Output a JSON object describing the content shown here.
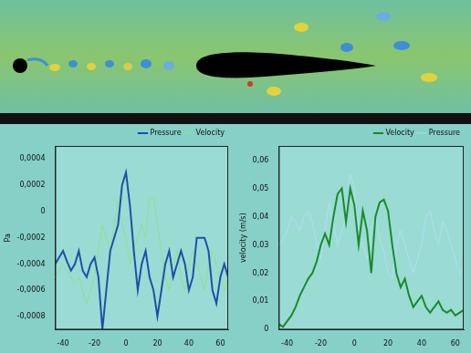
{
  "chart_data": [
    {
      "type": "line",
      "y_label": "Pa",
      "x": [
        -45,
        -42.5,
        -40,
        -37.5,
        -35,
        -32.5,
        -30,
        -27.5,
        -25,
        -22.5,
        -20,
        -17.5,
        -15,
        -12.5,
        -10,
        -7.5,
        -5,
        -2.5,
        0,
        2.5,
        5,
        7.5,
        10,
        12.5,
        15,
        17.5,
        20,
        22.5,
        25,
        27.5,
        30,
        32.5,
        35,
        37.5,
        40,
        42.5,
        45,
        47.5,
        50,
        52.5,
        55,
        57.5,
        60,
        62.5,
        65
      ],
      "series": [
        {
          "name": "Velocity",
          "color": "#8fe08a",
          "values": [
            -0.0005,
            -0.00045,
            -0.0004,
            -0.00045,
            -0.0005,
            -0.00055,
            -0.0005,
            -0.0006,
            -0.0007,
            -0.0006,
            -0.0005,
            -0.0003,
            -0.0001,
            -0.0002,
            -0.0003,
            -0.0001,
            0.0001,
            -0.0001,
            -0.0002,
            -0.0004,
            -0.0003,
            -0.0002,
            -0.0001,
            -0.0002,
            0.0001,
            0.0001,
            -0.0001,
            -0.0003,
            -0.0005,
            -0.0006,
            -0.0004,
            -0.0003,
            -0.0005,
            -0.0006,
            -0.0004,
            -0.0003,
            -0.0004,
            -0.0005,
            -0.0006,
            -0.0004,
            -0.0003,
            -0.0004,
            -0.0005,
            -0.0006,
            -0.0005
          ]
        },
        {
          "name": "Pressure",
          "color": "#1f4fa8",
          "values": [
            -0.0004,
            -0.00035,
            -0.0003,
            -0.00038,
            -0.00045,
            -0.0004,
            -0.0003,
            -0.00045,
            -0.0005,
            -0.0004,
            -0.00035,
            -0.0005,
            -0.0009,
            -0.0006,
            -0.0003,
            -0.0002,
            -0.0001,
            0.0002,
            0.0003,
            5e-05,
            -0.0003,
            -0.0006,
            -0.0004,
            -0.0003,
            -0.0005,
            -0.0006,
            -0.0008,
            -0.0006,
            -0.0004,
            -0.0003,
            -0.0005,
            -0.0004,
            -0.0003,
            -0.0004,
            -0.0006,
            -0.0005,
            -0.0002,
            -0.0002,
            -0.0002,
            -0.0003,
            -0.0006,
            -0.0007,
            -0.0005,
            -0.0004,
            -0.0005
          ]
        }
      ],
      "xlim": [
        -45,
        65
      ],
      "xticks": [
        -40,
        -20,
        0,
        20,
        40,
        60
      ],
      "ylim": [
        -0.0009,
        0.0005
      ],
      "yticks": [
        {
          "value": -0.0008,
          "label": "-0,0008"
        },
        {
          "value": -0.0006,
          "label": "-0,0006"
        },
        {
          "value": -0.0004,
          "label": "-0,0004"
        },
        {
          "value": -0.0002,
          "label": "-0,0002"
        },
        0,
        {
          "value": 0.0002,
          "label": "0,0002"
        },
        {
          "value": 0.0004,
          "label": "0,0004"
        }
      ],
      "grid": false,
      "legend": "upper right"
    },
    {
      "type": "line",
      "y_label": "velocity (m/s)",
      "x": [
        -45,
        -42.5,
        -40,
        -37.5,
        -35,
        -32.5,
        -30,
        -27.5,
        -25,
        -22.5,
        -20,
        -17.5,
        -15,
        -12.5,
        -10,
        -7.5,
        -5,
        -2.5,
        0,
        2.5,
        5,
        7.5,
        10,
        12.5,
        15,
        17.5,
        20,
        22.5,
        25,
        27.5,
        30,
        32.5,
        35,
        37.5,
        40,
        42.5,
        45,
        47.5,
        50,
        52.5,
        55,
        57.5,
        60,
        62.5,
        65
      ],
      "series": [
        {
          "name": "Velocity",
          "color": "#1a8a2a",
          "values": [
            0.002,
            0.001,
            0.003,
            0.005,
            0.008,
            0.012,
            0.015,
            0.018,
            0.02,
            0.024,
            0.03,
            0.034,
            0.03,
            0.04,
            0.048,
            0.05,
            0.038,
            0.05,
            0.044,
            0.03,
            0.042,
            0.035,
            0.02,
            0.04,
            0.045,
            0.046,
            0.042,
            0.03,
            0.02,
            0.015,
            0.018,
            0.012,
            0.008,
            0.01,
            0.012,
            0.008,
            0.006,
            0.008,
            0.01,
            0.007,
            0.006,
            0.007,
            0.005,
            0.006,
            0.007
          ]
        },
        {
          "name": "Pressure",
          "color": "#b4dcf0",
          "values": [
            0.03,
            0.032,
            0.035,
            0.04,
            0.038,
            0.035,
            0.04,
            0.042,
            0.038,
            0.03,
            0.025,
            0.035,
            0.045,
            0.038,
            0.03,
            0.035,
            0.04,
            0.055,
            0.05,
            0.035,
            0.03,
            0.025,
            0.035,
            0.04,
            0.032,
            0.028,
            0.02,
            0.018,
            0.03,
            0.035,
            0.03,
            0.025,
            0.02,
            0.025,
            0.03,
            0.04,
            0.042,
            0.035,
            0.03,
            0.038,
            0.035,
            0.03,
            0.025,
            0.02,
            0.022
          ]
        }
      ],
      "xlim": [
        -45,
        65
      ],
      "xticks": [
        -40,
        -20,
        0,
        20,
        40,
        60
      ],
      "ylim": [
        0,
        0.065
      ],
      "yticks": [
        0,
        {
          "value": 0.01,
          "label": "0,01"
        },
        {
          "value": 0.02,
          "label": "0,02"
        },
        {
          "value": 0.03,
          "label": "0,03"
        },
        {
          "value": 0.04,
          "label": "0,04"
        },
        {
          "value": 0.05,
          "label": "0,05"
        },
        {
          "value": 0.06,
          "label": "0,06"
        }
      ],
      "grid": false,
      "legend": "upper right"
    }
  ]
}
